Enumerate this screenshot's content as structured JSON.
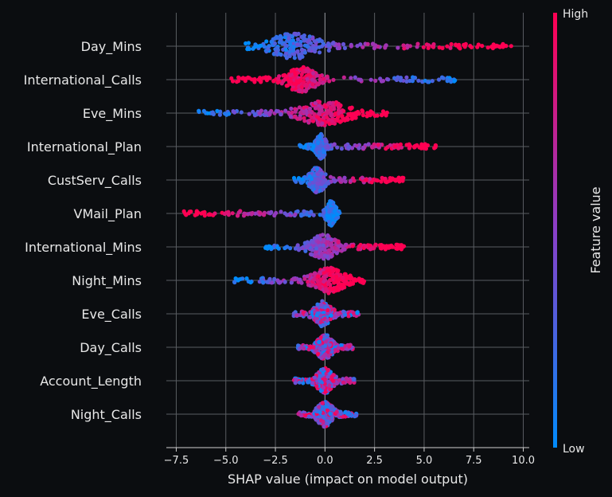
{
  "chart_data": {
    "type": "scatter",
    "subtype": "shap-beeswarm",
    "xlabel": "SHAP value (impact on model output)",
    "xlim": [
      -8.0,
      10.3
    ],
    "xticks": [
      -7.5,
      -5.0,
      -2.5,
      0.0,
      2.5,
      5.0,
      7.5,
      10.0
    ],
    "xtick_labels": [
      "−7.5",
      "−5.0",
      "−2.5",
      "0.0",
      "2.5",
      "5.0",
      "7.5",
      "10.0"
    ],
    "grid": true,
    "colorbar": {
      "label": "Feature value",
      "high_label": "High",
      "low_label": "Low",
      "high_color": "#ff0052",
      "mid_color": "#8a3fc8",
      "low_color": "#008bfb"
    },
    "features": [
      {
        "name": "Day_Mins",
        "min": -4.0,
        "max": 9.5,
        "peak": -1.6,
        "spread": 1.6,
        "low_side": "left"
      },
      {
        "name": "International_Calls",
        "min": -4.8,
        "max": 6.7,
        "peak": -1.2,
        "spread": 0.9,
        "low_side": "right"
      },
      {
        "name": "Eve_Mins",
        "min": -6.4,
        "max": 3.2,
        "peak": 0.0,
        "spread": 1.5,
        "low_side": "left"
      },
      {
        "name": "International_Plan",
        "min": -1.3,
        "max": 5.6,
        "peak": -0.2,
        "spread": 0.3,
        "low_side": "left"
      },
      {
        "name": "CustServ_Calls",
        "min": -1.6,
        "max": 4.0,
        "peak": -0.4,
        "spread": 0.5,
        "low_side": "left"
      },
      {
        "name": "VMail_Plan",
        "min": -7.2,
        "max": 0.8,
        "peak": 0.3,
        "spread": 0.3,
        "low_side": "right"
      },
      {
        "name": "International_Mins",
        "min": -3.0,
        "max": 4.0,
        "peak": -0.1,
        "spread": 0.8,
        "low_side": "left"
      },
      {
        "name": "Night_Mins",
        "min": -4.6,
        "max": 2.0,
        "peak": 0.2,
        "spread": 1.0,
        "low_side": "left"
      },
      {
        "name": "Eve_Calls",
        "min": -1.6,
        "max": 1.7,
        "peak": -0.1,
        "spread": 0.5,
        "low_side": "random"
      },
      {
        "name": "Day_Calls",
        "min": -1.4,
        "max": 1.4,
        "peak": 0.0,
        "spread": 0.5,
        "low_side": "random"
      },
      {
        "name": "Account_Length",
        "min": -1.6,
        "max": 1.5,
        "peak": 0.0,
        "spread": 0.5,
        "low_side": "random"
      },
      {
        "name": "Night_Calls",
        "min": -1.4,
        "max": 1.6,
        "peak": 0.0,
        "spread": 0.5,
        "low_side": "random"
      }
    ]
  }
}
